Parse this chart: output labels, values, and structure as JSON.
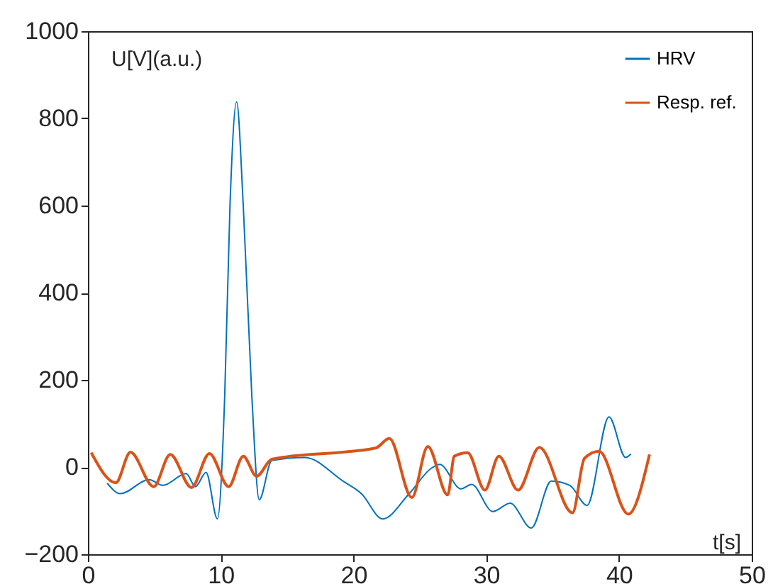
{
  "chart_data": {
    "type": "line",
    "xlabel": "t[s]",
    "ylabel": "U[V](a.u.)",
    "xlim": [
      0,
      50
    ],
    "ylim": [
      -200,
      1000
    ],
    "xticks": [
      0,
      10,
      20,
      30,
      40,
      50
    ],
    "yticks": [
      -200,
      0,
      200,
      400,
      600,
      800,
      1000
    ],
    "grid": false,
    "legend": "top right",
    "line_style": "solid",
    "marker": "none",
    "series": [
      {
        "name": "HRV",
        "color": "#0072bd",
        "x": [
          1.45,
          2.45,
          4.6,
          5.65,
          7.4,
          8.1,
          8.9,
          9.75,
          10.3,
          10.7,
          11.2,
          11.7,
          12.35,
          12.9,
          13.85,
          16.35,
          19.2,
          20.6,
          22.2,
          24.2,
          25.9,
          26.5,
          28.1,
          28.9,
          30.5,
          31.8,
          33.4,
          34.9,
          36.3,
          37.6,
          39.25,
          40.5,
          40.9
        ],
        "values": [
          -37,
          -61,
          -29,
          -42,
          -15,
          -45,
          -12,
          -119,
          160,
          600,
          838,
          600,
          160,
          -75,
          15,
          22,
          -32,
          -61,
          -119,
          -61,
          -2,
          6,
          -50,
          -40,
          -102,
          -83,
          -140,
          -32,
          -42,
          -88,
          115,
          22,
          30
        ]
      },
      {
        "name": "Resp. ref.",
        "color": "#d95319",
        "x": [
          0.25,
          2.1,
          3.2,
          4.95,
          6.2,
          7.8,
          9.15,
          10.6,
          11.7,
          12.7,
          13.85,
          21.7,
          22.7,
          24.4,
          25.6,
          27.1,
          27.6,
          28.6,
          29.9,
          30.95,
          32.4,
          34.0,
          36.5,
          37.4,
          38.5,
          40.7,
          42.3
        ],
        "values": [
          33,
          -36,
          34,
          -45,
          29,
          -47,
          31,
          -45,
          25,
          -21,
          18,
          44,
          66,
          -70,
          47,
          -64,
          25,
          33,
          -53,
          25,
          -53,
          45,
          -105,
          20,
          36,
          -108,
          29
        ]
      }
    ]
  }
}
